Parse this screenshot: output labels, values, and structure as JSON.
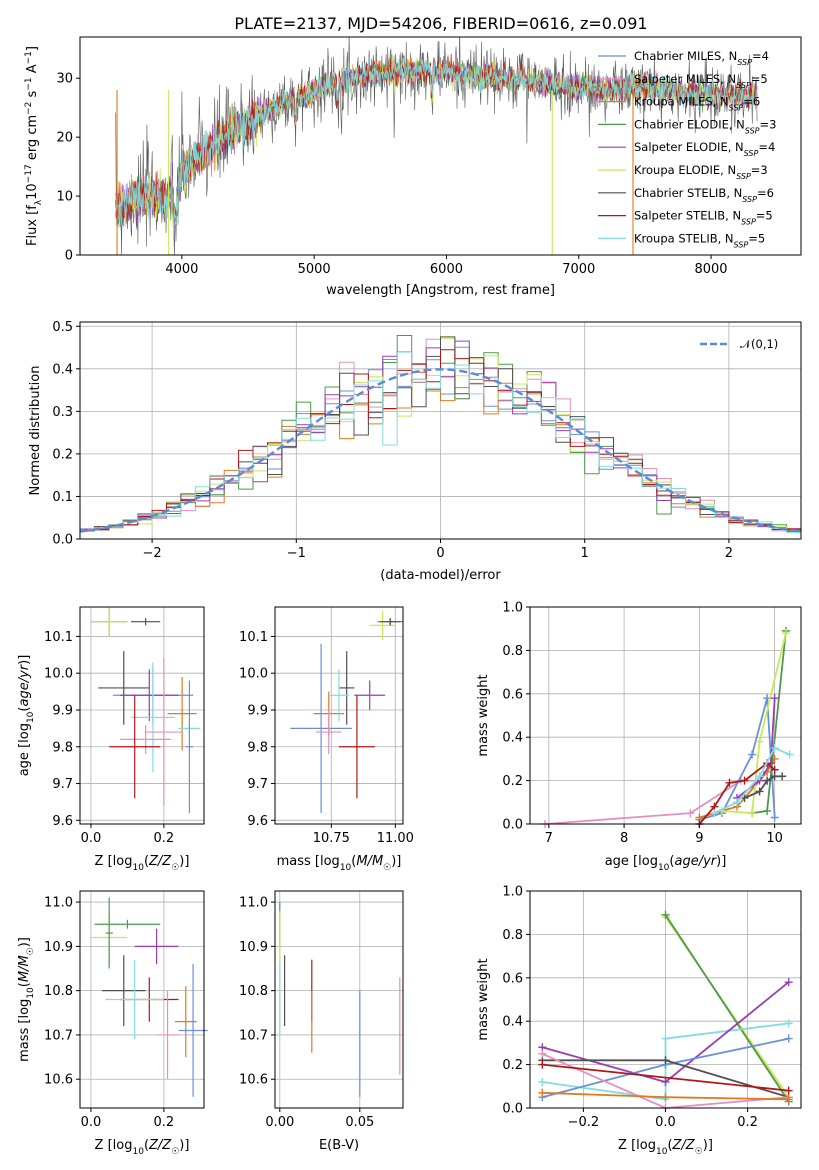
{
  "title": "PLATE=2137, MJD=54206, FIBERID=0616, z=0.091",
  "colors": {
    "c1": "#6a8fdb",
    "c2": "#e58fc0",
    "c3": "#e07a20",
    "c4": "#4d9a4d",
    "c5": "#9a3cb5",
    "c6": "#c8e858",
    "c7": "#505050",
    "c8": "#b01818",
    "c9": "#82dde0"
  },
  "legend": [
    {
      "color": "c1",
      "label": "Chabrier MILES, N",
      "sub": "SSP",
      "eq": "=4"
    },
    {
      "color": "c2",
      "label": "Salpeter MILES, N",
      "sub": "SSP",
      "eq": "=5"
    },
    {
      "color": "c3",
      "label": "Kroupa MILES, N",
      "sub": "SSP",
      "eq": "=6"
    },
    {
      "color": "c4",
      "label": "Chabrier ELODIE, N",
      "sub": "SSP",
      "eq": "=3"
    },
    {
      "color": "c5",
      "label": "Salpeter ELODIE, N",
      "sub": "SSP",
      "eq": "=4"
    },
    {
      "color": "c6",
      "label": "Kroupa ELODIE, N",
      "sub": "SSP",
      "eq": "=3"
    },
    {
      "color": "c7",
      "label": "Chabrier STELIB, N",
      "sub": "SSP",
      "eq": "=6"
    },
    {
      "color": "c8",
      "label": "Salpeter STELIB, N",
      "sub": "SSP",
      "eq": "=5"
    },
    {
      "color": "c9",
      "label": "Kroupa STELIB, N",
      "sub": "SSP",
      "eq": "=5"
    }
  ],
  "chart_data": [
    {
      "id": "spectrum",
      "type": "line",
      "xlabel": "wavelength [Angstrom, rest frame]",
      "ylabel": "Flux [f_λ 10^-17 erg cm^-2 s^-1 A^-1]",
      "ylabel_parts": [
        "Flux [f",
        "λ",
        "10",
        "−17",
        " erg cm",
        "−2",
        " s",
        "−1",
        " A",
        "−1",
        "]"
      ],
      "xlim": [
        3230,
        8680
      ],
      "ylim": [
        0,
        37
      ],
      "xticks": [
        4000,
        5000,
        6000,
        7000,
        8000
      ],
      "yticks": [
        0,
        10,
        20,
        30
      ],
      "continuum": {
        "x": [
          3500,
          3700,
          3900,
          4000,
          4200,
          4400,
          4600,
          4800,
          5000,
          5200,
          5400,
          5600,
          5800,
          6000,
          6200,
          6400,
          6600,
          6800,
          7000,
          7200,
          7400,
          7600,
          7800,
          8000,
          8200
        ],
        "y": [
          8,
          10,
          10,
          14,
          18,
          21,
          24,
          26,
          28,
          29.5,
          30.5,
          31,
          31.5,
          31,
          30.5,
          30,
          29.5,
          29,
          28.5,
          28,
          28.5,
          28,
          27.5,
          27.5,
          27
        ]
      },
      "drops": [
        3510,
        3900,
        6800,
        7410
      ],
      "grid": false
    },
    {
      "id": "residuals",
      "type": "histogram",
      "xlabel": "(data-model)/error",
      "ylabel": "Normed distribution",
      "xlim": [
        -2.5,
        2.5
      ],
      "ylim": [
        0,
        0.51
      ],
      "xticks": [
        -2,
        -1,
        0,
        1,
        2
      ],
      "yticks": [
        0,
        0.1,
        0.2,
        0.3,
        0.4,
        0.5
      ],
      "bin_width": 0.1,
      "reference": {
        "name": "𝒩(0,1)",
        "mean": 0,
        "sd": 1
      },
      "grid": true
    },
    {
      "id": "age_vs_Z",
      "type": "errorbar",
      "xlabel": "Z [log10(Z/Z☉)]",
      "ylabel": "age [log10(age/yr)]",
      "xlim": [
        -0.03,
        0.31
      ],
      "ylim": [
        9.59,
        10.18
      ],
      "xticks": [
        0.0,
        0.2
      ],
      "yticks": [
        9.6,
        9.7,
        9.8,
        9.9,
        10.0,
        10.1
      ],
      "grid": true,
      "points": [
        {
          "c": "c4",
          "x": 0.05,
          "xe": 0.05,
          "y": 10.14,
          "ye": 0.04
        },
        {
          "c": "c6",
          "x": 0.05,
          "xe": 0.05,
          "y": 10.14,
          "ye": 0.04
        },
        {
          "c": "c7",
          "x": 0.15,
          "xe": 0.04,
          "y": 10.14,
          "ye": 0.01
        },
        {
          "c": "c7",
          "x": 0.09,
          "xe": 0.07,
          "y": 9.96,
          "ye": 0.1
        },
        {
          "c": "c1",
          "x": 0.17,
          "xe": 0.11,
          "y": 9.94,
          "ye": 0.08
        },
        {
          "c": "c5",
          "x": 0.16,
          "xe": 0.08,
          "y": 9.94,
          "ye": 0.07
        },
        {
          "c": "c3",
          "x": 0.25,
          "xe": 0.04,
          "y": 9.89,
          "ye": 0.1
        },
        {
          "c": "c9",
          "x": 0.17,
          "xe": 0.06,
          "y": 9.88,
          "ye": 0.15
        },
        {
          "c": "c9",
          "x": 0.27,
          "xe": 0.03,
          "y": 9.85,
          "ye": 0.02
        },
        {
          "c": "c2",
          "x": 0.2,
          "xe": 0.05,
          "y": 9.84,
          "ye": 0.2
        },
        {
          "c": "c2",
          "x": 0.15,
          "xe": 0.07,
          "y": 9.82,
          "ye": 0.04
        },
        {
          "c": "c8",
          "x": 0.12,
          "xe": 0.07,
          "y": 9.8,
          "ye": 0.14
        },
        {
          "c": "c1",
          "x": 0.27,
          "xe": 0.01,
          "y": 9.8,
          "ye": 0.18
        }
      ]
    },
    {
      "id": "age_vs_mass",
      "type": "errorbar",
      "xlabel": "mass [log10(M/M☉)]",
      "ylabel": "",
      "xlim": [
        10.53,
        11.03
      ],
      "ylim": [
        9.59,
        10.18
      ],
      "xticks": [
        10.75,
        11.0
      ],
      "yticks": [
        9.6,
        9.7,
        9.8,
        9.9,
        10.0,
        10.1
      ],
      "grid": true,
      "points": [
        {
          "c": "c4",
          "x": 10.98,
          "xe": 0.05,
          "y": 10.14,
          "ye": 0.01
        },
        {
          "c": "c6",
          "x": 10.95,
          "xe": 0.05,
          "y": 10.13,
          "ye": 0.04
        },
        {
          "c": "c7",
          "x": 10.98,
          "xe": 0.04,
          "y": 10.14,
          "ye": 0.01
        },
        {
          "c": "c7",
          "x": 10.81,
          "xe": 0.03,
          "y": 9.96,
          "ye": 0.1
        },
        {
          "c": "c1",
          "x": 10.71,
          "xe": 0.12,
          "y": 9.85,
          "ye": 0.23
        },
        {
          "c": "c5",
          "x": 10.9,
          "xe": 0.06,
          "y": 9.94,
          "ye": 0.04
        },
        {
          "c": "c3",
          "x": 10.74,
          "xe": 0.06,
          "y": 9.89,
          "ye": 0.06
        },
        {
          "c": "c9",
          "x": 10.78,
          "xe": 0.04,
          "y": 9.94,
          "ye": 0.07
        },
        {
          "c": "c2",
          "x": 10.74,
          "xe": 0.05,
          "y": 9.84,
          "ye": 0.06
        },
        {
          "c": "c8",
          "x": 10.85,
          "xe": 0.07,
          "y": 9.8,
          "ye": 0.14
        }
      ]
    },
    {
      "id": "weight_vs_age",
      "type": "line",
      "xlabel": "age [log10(age/yr)]",
      "ylabel": "mass weight",
      "xlim": [
        6.75,
        10.35
      ],
      "ylim": [
        0,
        1
      ],
      "xticks": [
        7,
        8,
        9,
        10
      ],
      "yticks": [
        0,
        0.2,
        0.4,
        0.6,
        0.8,
        1.0
      ],
      "grid": true,
      "series": [
        {
          "c": "c2",
          "x": [
            6.95,
            8.88,
            9.55,
            9.9
          ],
          "y": [
            0,
            0.05,
            0.2,
            0.2
          ]
        },
        {
          "c": "c1",
          "x": [
            9.0,
            9.3,
            9.7,
            9.9,
            10.0
          ],
          "y": [
            0.02,
            0.05,
            0.32,
            0.58,
            0.03
          ]
        },
        {
          "c": "c3",
          "x": [
            9.0,
            9.5,
            9.9,
            10.0
          ],
          "y": [
            0.03,
            0.08,
            0.24,
            0.3
          ]
        },
        {
          "c": "c4",
          "x": [
            9.7,
            9.9,
            10.15
          ],
          "y": [
            0.05,
            0.06,
            0.89
          ]
        },
        {
          "c": "c6",
          "x": [
            9.3,
            9.7,
            9.8,
            10.15
          ],
          "y": [
            0.06,
            0.05,
            0.38,
            0.88
          ]
        },
        {
          "c": "c5",
          "x": [
            9.5,
            9.8,
            9.95,
            10.0
          ],
          "y": [
            0.12,
            0.2,
            0.28,
            0.58
          ]
        },
        {
          "c": "c7",
          "x": [
            9.6,
            9.8,
            9.9,
            10.0,
            10.1
          ],
          "y": [
            0.12,
            0.15,
            0.2,
            0.22,
            0.22
          ]
        },
        {
          "c": "c8",
          "x": [
            9.0,
            9.2,
            9.4,
            9.6,
            9.9,
            10.0
          ],
          "y": [
            0,
            0.08,
            0.19,
            0.2,
            0.28,
            0.25
          ]
        },
        {
          "c": "c9",
          "x": [
            9.2,
            9.5,
            9.8,
            10.0,
            10.2
          ],
          "y": [
            0.05,
            0.1,
            0.22,
            0.35,
            0.32
          ]
        }
      ]
    },
    {
      "id": "mass_vs_Z",
      "type": "errorbar",
      "xlabel": "Z [log10(Z/Z☉)]",
      "ylabel": "mass [log10(M/M☉)]",
      "xlim": [
        -0.03,
        0.31
      ],
      "ylim": [
        10.535,
        11.025
      ],
      "xticks": [
        0.0,
        0.2
      ],
      "yticks": [
        10.6,
        10.7,
        10.8,
        10.9,
        11.0
      ],
      "grid": true,
      "points": [
        {
          "c": "c4",
          "x": 0.1,
          "xe": 0.09,
          "y": 10.95,
          "ye": 0.01
        },
        {
          "c": "c6",
          "x": 0.05,
          "xe": 0.05,
          "y": 10.92,
          "ye": 0.06
        },
        {
          "c": "c4",
          "x": 0.05,
          "xe": 0.01,
          "y": 10.93,
          "ye": 0.08
        },
        {
          "c": "c5",
          "x": 0.18,
          "xe": 0.06,
          "y": 10.9,
          "ye": 0.04
        },
        {
          "c": "c7",
          "x": 0.09,
          "xe": 0.06,
          "y": 10.8,
          "ye": 0.08
        },
        {
          "c": "c3",
          "x": 0.26,
          "xe": 0.03,
          "y": 10.73,
          "ye": 0.08
        },
        {
          "c": "c8",
          "x": 0.16,
          "xe": 0.08,
          "y": 10.78,
          "ye": 0.05
        },
        {
          "c": "c9",
          "x": 0.12,
          "xe": 0.08,
          "y": 10.78,
          "ye": 0.09
        },
        {
          "c": "c2",
          "x": 0.21,
          "xe": 0.03,
          "y": 10.7,
          "ye": 0.1
        },
        {
          "c": "c1",
          "x": 0.28,
          "xe": 0.04,
          "y": 10.71,
          "ye": 0.15
        }
      ]
    },
    {
      "id": "mass_vs_EBV",
      "type": "errorbar",
      "xlabel": "E(B-V)",
      "ylabel": "",
      "xlim": [
        -0.003,
        0.077
      ],
      "ylim": [
        10.535,
        11.025
      ],
      "xticks": [
        0.0,
        0.05
      ],
      "yticks": [
        10.6,
        10.7,
        10.8,
        10.9,
        11.0
      ],
      "grid": true,
      "points": [
        {
          "c": "c4",
          "x": 0.0,
          "xe": 0,
          "y": 10.95,
          "ye": 0.05
        },
        {
          "c": "c6",
          "x": 0.0,
          "xe": 0,
          "y": 10.92,
          "ye": 0.06
        },
        {
          "c": "c9",
          "x": 0.0,
          "xe": 0,
          "y": 10.78,
          "ye": 0.08
        },
        {
          "c": "c7",
          "x": 0.003,
          "xe": 0,
          "y": 10.8,
          "ye": 0.08
        },
        {
          "c": "c8",
          "x": 0.02,
          "xe": 0,
          "y": 10.8,
          "ye": 0.07
        },
        {
          "c": "c3",
          "x": 0.02,
          "xe": 0,
          "y": 10.73,
          "ye": 0.07
        },
        {
          "c": "c1",
          "x": 0.05,
          "xe": 0,
          "y": 10.68,
          "ye": 0.12
        },
        {
          "c": "c2",
          "x": 0.075,
          "xe": 0,
          "y": 10.72,
          "ye": 0.11
        }
      ]
    },
    {
      "id": "weight_vs_Z",
      "type": "line",
      "xlabel": "Z [log10(Z/Z☉)]",
      "ylabel": "mass weight",
      "xlim": [
        -0.33,
        0.33
      ],
      "ylim": [
        0,
        1
      ],
      "xticks": [
        -0.2,
        0.0,
        0.2
      ],
      "yticks": [
        0,
        0.2,
        0.4,
        0.6,
        0.8,
        1.0
      ],
      "grid": true,
      "series": [
        {
          "c": "c6",
          "x": [
            0,
            0.3
          ],
          "y": [
            0.88,
            0.05
          ]
        },
        {
          "c": "c4",
          "x": [
            0,
            0.3
          ],
          "y": [
            0.89,
            0.03
          ]
        },
        {
          "c": "c9",
          "x": [
            -0.3,
            0,
            0,
            0.3
          ],
          "y": [
            0.12,
            0.04,
            0.32,
            0.39
          ]
        },
        {
          "c": "c5",
          "x": [
            -0.3,
            0,
            0.3
          ],
          "y": [
            0.28,
            0.12,
            0.58
          ]
        },
        {
          "c": "c1",
          "x": [
            -0.3,
            0,
            0.3
          ],
          "y": [
            0.05,
            0.2,
            0.32
          ]
        },
        {
          "c": "c7",
          "x": [
            -0.3,
            0,
            0.3
          ],
          "y": [
            0.22,
            0.22,
            0.05
          ]
        },
        {
          "c": "c2",
          "x": [
            -0.3,
            0,
            0.3
          ],
          "y": [
            0.25,
            0,
            0.05
          ]
        },
        {
          "c": "c8",
          "x": [
            -0.3,
            0.3
          ],
          "y": [
            0.2,
            0.08
          ]
        },
        {
          "c": "c3",
          "x": [
            -0.3,
            0,
            0.3
          ],
          "y": [
            0.07,
            0.05,
            0.04
          ]
        }
      ]
    }
  ]
}
